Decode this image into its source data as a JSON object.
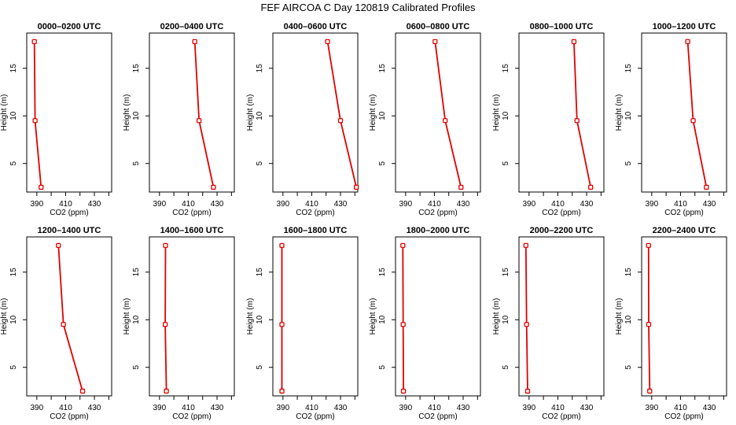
{
  "figure_title": "FEF AIRCOA C  Day 120819  Calibrated Profiles",
  "colors": {
    "line": "#e00000",
    "axis": "#000000"
  },
  "chart_data": [
    {
      "type": "line",
      "title": "0000–0200 UTC",
      "xlabel": "CO2 (ppm)",
      "ylabel": "Height (m)",
      "xlim": [
        383,
        442
      ],
      "ylim": [
        2,
        18.7
      ],
      "xticks": [
        390,
        410,
        430
      ],
      "yticks": [
        5,
        10,
        15
      ],
      "heights": [
        2.5,
        9.5,
        17.8
      ],
      "values": [
        393.0,
        388.8,
        388.3
      ]
    },
    {
      "type": "line",
      "title": "0200–0400 UTC",
      "xlabel": "CO2 (ppm)",
      "ylabel": "Height (m)",
      "xlim": [
        383,
        442
      ],
      "ylim": [
        2,
        18.7
      ],
      "xticks": [
        390,
        410,
        430
      ],
      "yticks": [
        5,
        10,
        15
      ],
      "heights": [
        2.5,
        9.5,
        17.8
      ],
      "values": [
        427.5,
        417.5,
        414.5
      ]
    },
    {
      "type": "line",
      "title": "0400–0600 UTC",
      "xlabel": "CO2 (ppm)",
      "ylabel": "Height (m)",
      "xlim": [
        383,
        442
      ],
      "ylim": [
        2,
        18.7
      ],
      "xticks": [
        390,
        410,
        430
      ],
      "yticks": [
        5,
        10,
        15
      ],
      "heights": [
        2.5,
        9.5,
        17.8
      ],
      "values": [
        441.0,
        430.0,
        421.0
      ]
    },
    {
      "type": "line",
      "title": "0600–0800 UTC",
      "xlabel": "CO2 (ppm)",
      "ylabel": "Height (m)",
      "xlim": [
        383,
        442
      ],
      "ylim": [
        2,
        18.7
      ],
      "xticks": [
        390,
        410,
        430
      ],
      "yticks": [
        5,
        10,
        15
      ],
      "heights": [
        2.5,
        9.5,
        17.8
      ],
      "values": [
        428.5,
        417.5,
        410.5
      ]
    },
    {
      "type": "line",
      "title": "0800–1000 UTC",
      "xlabel": "CO2 (ppm)",
      "ylabel": "Height (m)",
      "xlim": [
        383,
        442
      ],
      "ylim": [
        2,
        18.7
      ],
      "xticks": [
        390,
        410,
        430
      ],
      "yticks": [
        5,
        10,
        15
      ],
      "heights": [
        2.5,
        9.5,
        17.8
      ],
      "values": [
        432.8,
        423.3,
        421.2
      ]
    },
    {
      "type": "line",
      "title": "1000–1200 UTC",
      "xlabel": "CO2 (ppm)",
      "ylabel": "Height (m)",
      "xlim": [
        383,
        442
      ],
      "ylim": [
        2,
        18.7
      ],
      "xticks": [
        390,
        410,
        430
      ],
      "yticks": [
        5,
        10,
        15
      ],
      "heights": [
        2.5,
        9.5,
        17.8
      ],
      "values": [
        428.0,
        418.8,
        415.0
      ]
    },
    {
      "type": "line",
      "title": "1200–1400 UTC",
      "xlabel": "CO2 (ppm)",
      "ylabel": "Height (m)",
      "xlim": [
        383,
        442
      ],
      "ylim": [
        2,
        18.7
      ],
      "xticks": [
        390,
        410,
        430
      ],
      "yticks": [
        5,
        10,
        15
      ],
      "heights": [
        2.5,
        9.5,
        17.8
      ],
      "values": [
        421.8,
        408.5,
        405.0
      ]
    },
    {
      "type": "line",
      "title": "1400–1600 UTC",
      "xlabel": "CO2 (ppm)",
      "ylabel": "Height (m)",
      "xlim": [
        383,
        442
      ],
      "ylim": [
        2,
        18.7
      ],
      "xticks": [
        390,
        410,
        430
      ],
      "yticks": [
        5,
        10,
        15
      ],
      "heights": [
        2.5,
        9.5,
        17.8
      ],
      "values": [
        394.8,
        394.0,
        394.2
      ]
    },
    {
      "type": "line",
      "title": "1600–1800 UTC",
      "xlabel": "CO2 (ppm)",
      "ylabel": "Height (m)",
      "xlim": [
        383,
        442
      ],
      "ylim": [
        2,
        18.7
      ],
      "xticks": [
        390,
        410,
        430
      ],
      "yticks": [
        5,
        10,
        15
      ],
      "heights": [
        2.5,
        9.5,
        17.8
      ],
      "values": [
        389.3,
        389.3,
        389.3
      ]
    },
    {
      "type": "line",
      "title": "1800–2000 UTC",
      "xlabel": "CO2 (ppm)",
      "ylabel": "Height (m)",
      "xlim": [
        383,
        442
      ],
      "ylim": [
        2,
        18.7
      ],
      "xticks": [
        390,
        410,
        430
      ],
      "yticks": [
        5,
        10,
        15
      ],
      "heights": [
        2.5,
        9.5,
        17.8
      ],
      "values": [
        388.5,
        388.3,
        388.1
      ]
    },
    {
      "type": "line",
      "title": "2000–2200 UTC",
      "xlabel": "CO2 (ppm)",
      "ylabel": "Height (m)",
      "xlim": [
        383,
        442
      ],
      "ylim": [
        2,
        18.7
      ],
      "xticks": [
        390,
        410,
        430
      ],
      "yticks": [
        5,
        10,
        15
      ],
      "heights": [
        2.5,
        9.5,
        17.8
      ],
      "values": [
        389.0,
        388.3,
        387.8
      ]
    },
    {
      "type": "line",
      "title": "2200–2400 UTC",
      "xlabel": "CO2 (ppm)",
      "ylabel": "Height (m)",
      "xlim": [
        383,
        442
      ],
      "ylim": [
        2,
        18.7
      ],
      "xticks": [
        390,
        410,
        430
      ],
      "yticks": [
        5,
        10,
        15
      ],
      "heights": [
        2.5,
        9.5,
        17.8
      ],
      "values": [
        388.6,
        387.9,
        387.8
      ]
    }
  ]
}
